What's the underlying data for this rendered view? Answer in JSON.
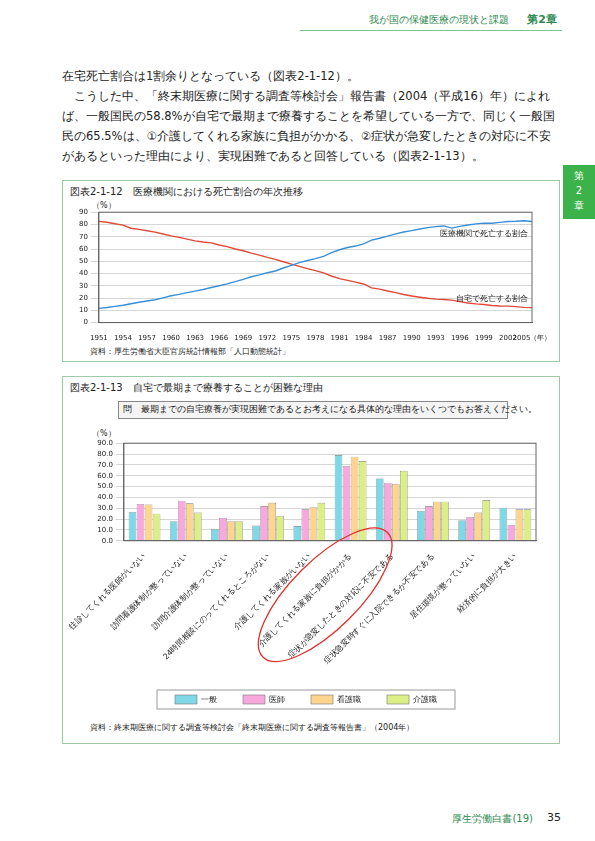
{
  "header": {
    "section": "我が国の保健医療の現状と課題",
    "chapter": "第2章"
  },
  "side_tab": [
    "第",
    "2",
    "章"
  ],
  "body": [
    "在宅死亡割合は1割余りとなっている（図表2-1-12）。",
    "　こうした中、「終末期医療に関する調査等検討会」報告書（2004（平成16）年）によれば、一般国民の58.8%が自宅で最期まで療養することを希望している一方で、同じく一般国民の65.5%は、①介護してくれる家族に負担がかかる、②症状が急変したときの対応に不安があるといった理由により、実現困難であると回答している（図表2-1-13）。"
  ],
  "chart_data": [
    {
      "type": "line",
      "title": "図表2-1-12　医療機関における死亡割合の年次推移",
      "y_label": "（%）",
      "x": [
        1951,
        1952,
        1953,
        1954,
        1955,
        1956,
        1957,
        1958,
        1959,
        1960,
        1961,
        1962,
        1963,
        1964,
        1965,
        1966,
        1967,
        1968,
        1969,
        1970,
        1971,
        1972,
        1973,
        1974,
        1975,
        1976,
        1977,
        1978,
        1979,
        1980,
        1981,
        1982,
        1983,
        1984,
        1985,
        1986,
        1987,
        1988,
        1989,
        1990,
        1991,
        1992,
        1993,
        1994,
        1995,
        1996,
        1997,
        1998,
        1999,
        2000,
        2001,
        2002,
        2003,
        2004,
        2005
      ],
      "series": [
        {
          "name": "医療機関で死亡する割合",
          "color": "#3a8fd9",
          "values": [
            11.6,
            12.3,
            13.2,
            14.1,
            15.4,
            16.6,
            17.6,
            18.6,
            20.2,
            21.9,
            23.0,
            24.4,
            25.7,
            27.0,
            28.6,
            30.0,
            31.6,
            33.4,
            35.3,
            37.4,
            38.9,
            40.6,
            42.1,
            44.5,
            46.7,
            48.9,
            50.6,
            52.2,
            54.0,
            57.0,
            59.4,
            61.2,
            62.4,
            64.2,
            67.3,
            68.8,
            70.5,
            72.3,
            73.9,
            75.0,
            76.3,
            77.4,
            78.2,
            78.8,
            77.0,
            78.4,
            79.6,
            80.5,
            81.1,
            81.0,
            81.7,
            82.4,
            82.6,
            83.0,
            82.4
          ]
        },
        {
          "name": "自宅で死亡する割合",
          "color": "#e0483a",
          "values": [
            82.5,
            81.8,
            80.6,
            79.5,
            76.9,
            76.0,
            74.9,
            73.8,
            72.2,
            70.7,
            69.5,
            68.0,
            66.6,
            65.7,
            65.0,
            63.3,
            61.9,
            60.0,
            58.6,
            56.6,
            55.0,
            53.2,
            51.5,
            49.6,
            47.7,
            45.8,
            44.0,
            42.4,
            40.6,
            38.0,
            35.9,
            34.4,
            33.0,
            31.5,
            28.3,
            27.3,
            25.8,
            24.4,
            22.9,
            21.7,
            20.7,
            19.8,
            19.1,
            18.8,
            18.3,
            17.1,
            16.0,
            15.3,
            14.8,
            13.9,
            13.5,
            13.4,
            13.0,
            12.4,
            12.2
          ]
        }
      ],
      "xlim": [
        1951,
        2005
      ],
      "xticks": [
        1951,
        1954,
        1957,
        1960,
        1963,
        1966,
        1969,
        1972,
        1975,
        1978,
        1981,
        1984,
        1987,
        1990,
        1993,
        1996,
        1999,
        2002,
        {
          "value": 2005,
          "label": "2005（年）"
        }
      ],
      "ylim": [
        0,
        90
      ],
      "yticks": [
        0,
        10,
        20,
        30,
        40,
        50,
        60,
        70,
        80,
        90
      ],
      "grid": true,
      "source": "資料：厚生労働省大臣官房統計情報部「人口動態統計」"
    },
    {
      "type": "bar",
      "title": "図表2-1-13　自宅で最期まで療養することが困難な理由",
      "question": "問　最期までの自宅療養が実現困難であるとお考えになる具体的な理由をいくつでもお答えください。",
      "y_label": "（%）",
      "categories": [
        "往診してくれる医師がいない",
        "訪問看護体制が整っていない",
        "訪問介護体制が整っていない",
        "24時間相談にのってくれるところがない",
        "介護してくれる家族がいない",
        "介護してくれる家族に負担がかかる",
        "症状が急変したときの対応に不安である",
        "症状急変時すぐに入院できるか不安である",
        "居住環境が整っていない",
        "経済的に負担が大きい"
      ],
      "series": [
        {
          "name": "一般",
          "color": "#7fd8e6",
          "values": [
            26.5,
            18,
            11,
            14,
            13.5,
            79,
            57.5,
            27.5,
            19,
            30.5
          ]
        },
        {
          "name": "医師",
          "color": "#f7a8dc",
          "values": [
            34,
            37,
            21,
            32,
            29,
            69,
            53.5,
            32,
            22,
            14.5
          ]
        },
        {
          "name": "看護職",
          "color": "#fdd58e",
          "values": [
            33.5,
            34.5,
            18,
            35,
            31,
            77.5,
            52.5,
            36,
            26,
            29
          ]
        },
        {
          "name": "介護職",
          "color": "#dcef86",
          "values": [
            25,
            26,
            18,
            23,
            35,
            73.5,
            64.5,
            36,
            37.5,
            29
          ]
        }
      ],
      "ylim": [
        0,
        90
      ],
      "yticks": [
        {
          "value": 0,
          "label": "0.0"
        },
        {
          "value": 10,
          "label": "10.0"
        },
        {
          "value": 20,
          "label": "20.0"
        },
        {
          "value": 30,
          "label": "30.0"
        },
        {
          "value": 40,
          "label": "40.0"
        },
        {
          "value": 50,
          "label": "50.0"
        },
        {
          "value": 60,
          "label": "60.0"
        },
        {
          "value": 70,
          "label": "70.0"
        },
        {
          "value": 80,
          "label": "80.0"
        },
        {
          "value": 90,
          "label": "90.0"
        }
      ],
      "grid": true,
      "legend": "bottom",
      "source": "資料：終末期医療に関する調査等検討会「終末期医療に関する調査等報告書」（2004年）"
    }
  ],
  "footer": {
    "title": "厚生労働白書(19)",
    "page": "35"
  }
}
